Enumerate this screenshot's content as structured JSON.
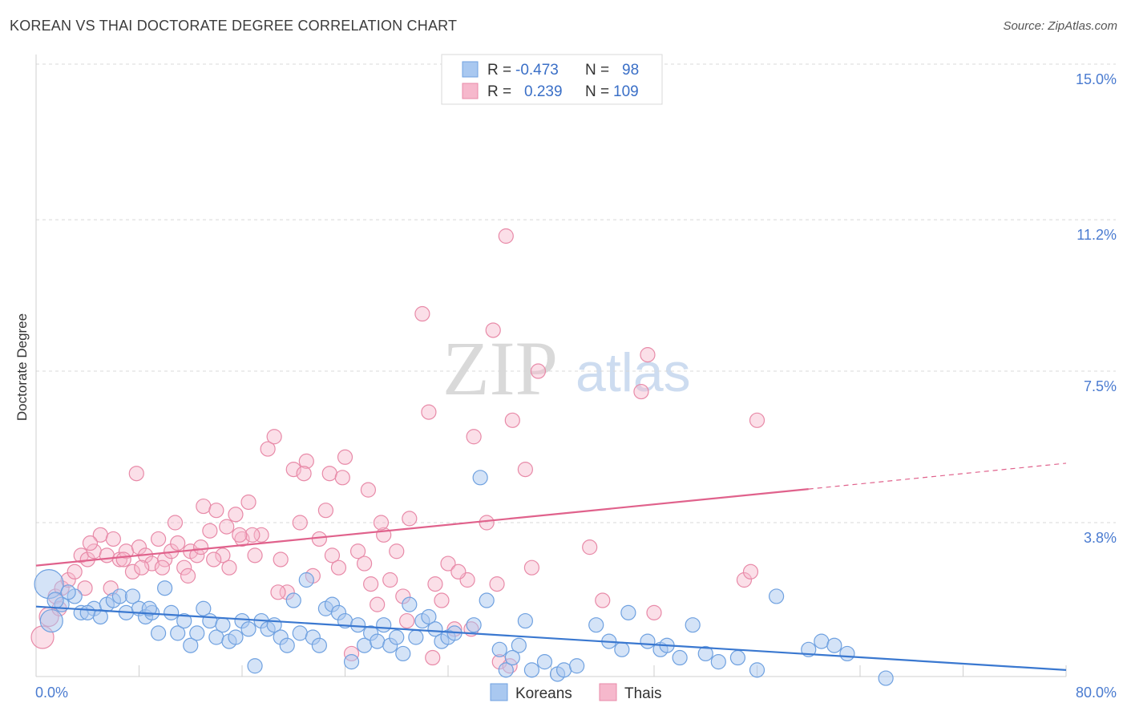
{
  "header": {
    "title": "KOREAN VS THAI DOCTORATE DEGREE CORRELATION CHART",
    "source": "Source: ZipAtlas.com"
  },
  "watermark": {
    "zip": "ZIP",
    "atlas": "atlas"
  },
  "colors": {
    "korean_fill": "#a9c8f0",
    "korean_stroke": "#6fa1e0",
    "korean_line": "#3a78d0",
    "thai_fill": "#f6b8cc",
    "thai_stroke": "#e88aa8",
    "thai_line": "#e0628c",
    "tick_text": "#4a7bd0",
    "grid": "#d8d8d8"
  },
  "legend": {
    "rows": [
      {
        "r_label": "R =",
        "r_value": "-0.473",
        "n_label": "N =",
        "n_value": "98"
      },
      {
        "r_label": "R =",
        "r_value": "0.239",
        "n_label": "N =",
        "n_value": "109"
      }
    ]
  },
  "bottom_legend": {
    "koreans": "Koreans",
    "thais": "Thais"
  },
  "chart_data": {
    "type": "scatter",
    "title": "KOREAN VS THAI DOCTORATE DEGREE CORRELATION CHART",
    "xlabel": "",
    "ylabel": "Doctorate Degree",
    "xlim": [
      0,
      80
    ],
    "ylim": [
      0,
      15.5
    ],
    "x_tick_labels": [
      "0.0%",
      "80.0%"
    ],
    "y_ticks": [
      3.8,
      7.5,
      11.2,
      15.0
    ],
    "y_tick_labels": [
      "3.8%",
      "7.5%",
      "11.2%",
      "15.0%"
    ],
    "series": [
      {
        "name": "Koreans",
        "r": -0.473,
        "n": 98,
        "trend": {
          "x0": 0,
          "y0": 1.75,
          "x1": 80,
          "y1": 0.2
        },
        "points": [
          [
            1.0,
            2.3,
            18
          ],
          [
            1.2,
            1.4,
            14
          ],
          [
            2.0,
            1.8,
            9
          ],
          [
            3.0,
            2.0,
            9
          ],
          [
            3.5,
            1.6,
            9
          ],
          [
            4.5,
            1.7,
            9
          ],
          [
            5.0,
            1.5,
            9
          ],
          [
            5.5,
            1.8,
            9
          ],
          [
            6.0,
            1.9,
            9
          ],
          [
            6.5,
            2.0,
            9
          ],
          [
            7.0,
            1.6,
            9
          ],
          [
            7.5,
            2.0,
            9
          ],
          [
            8.0,
            1.7,
            9
          ],
          [
            8.5,
            1.5,
            9
          ],
          [
            9.0,
            1.6,
            9
          ],
          [
            9.5,
            1.1,
            9
          ],
          [
            10.0,
            2.2,
            9
          ],
          [
            10.5,
            1.6,
            9
          ],
          [
            11.0,
            1.1,
            9
          ],
          [
            11.5,
            1.4,
            9
          ],
          [
            12.0,
            0.8,
            9
          ],
          [
            12.5,
            1.1,
            9
          ],
          [
            13.0,
            1.7,
            9
          ],
          [
            13.5,
            1.4,
            9
          ],
          [
            14.0,
            1.0,
            9
          ],
          [
            14.5,
            1.3,
            9
          ],
          [
            15.0,
            0.9,
            9
          ],
          [
            15.5,
            1.0,
            9
          ],
          [
            16.0,
            1.4,
            9
          ],
          [
            16.5,
            1.2,
            9
          ],
          [
            17.0,
            0.3,
            9
          ],
          [
            17.5,
            1.4,
            9
          ],
          [
            18.0,
            1.2,
            9
          ],
          [
            18.5,
            1.3,
            9
          ],
          [
            19.0,
            1.0,
            9
          ],
          [
            19.5,
            0.8,
            9
          ],
          [
            20.0,
            1.9,
            9
          ],
          [
            20.5,
            1.1,
            9
          ],
          [
            21.0,
            2.4,
            9
          ],
          [
            21.5,
            1.0,
            9
          ],
          [
            22.0,
            0.8,
            9
          ],
          [
            22.5,
            1.7,
            9
          ],
          [
            23.0,
            1.8,
            9
          ],
          [
            23.5,
            1.6,
            9
          ],
          [
            24.0,
            1.4,
            9
          ],
          [
            24.5,
            0.4,
            9
          ],
          [
            25.0,
            1.3,
            9
          ],
          [
            25.5,
            0.8,
            9
          ],
          [
            26.0,
            1.1,
            9
          ],
          [
            26.5,
            0.9,
            9
          ],
          [
            27.0,
            1.3,
            9
          ],
          [
            27.5,
            0.8,
            9
          ],
          [
            28.0,
            1.0,
            9
          ],
          [
            28.5,
            0.6,
            9
          ],
          [
            29.0,
            1.8,
            9
          ],
          [
            29.5,
            1.0,
            9
          ],
          [
            30.0,
            1.4,
            9
          ],
          [
            30.5,
            1.5,
            9
          ],
          [
            31.0,
            1.2,
            9
          ],
          [
            31.5,
            0.9,
            9
          ],
          [
            32.0,
            1.0,
            9
          ],
          [
            32.5,
            1.1,
            9
          ],
          [
            34.0,
            1.3,
            9
          ],
          [
            34.5,
            4.9,
            9
          ],
          [
            35.0,
            1.9,
            9
          ],
          [
            36.0,
            0.7,
            9
          ],
          [
            36.5,
            0.2,
            9
          ],
          [
            37.5,
            0.8,
            9
          ],
          [
            38.0,
            1.4,
            9
          ],
          [
            38.5,
            0.2,
            9
          ],
          [
            39.5,
            0.4,
            9
          ],
          [
            40.5,
            0.1,
            9
          ],
          [
            41.0,
            0.2,
            9
          ],
          [
            42.0,
            0.3,
            9
          ],
          [
            43.5,
            1.3,
            9
          ],
          [
            44.5,
            0.9,
            9
          ],
          [
            45.5,
            0.7,
            9
          ],
          [
            46.0,
            1.6,
            9
          ],
          [
            47.5,
            0.9,
            9
          ],
          [
            48.5,
            0.7,
            9
          ],
          [
            49.0,
            0.8,
            9
          ],
          [
            50.0,
            0.5,
            9
          ],
          [
            51.0,
            1.3,
            9
          ],
          [
            52.0,
            0.6,
            9
          ],
          [
            53.0,
            0.4,
            9
          ],
          [
            54.5,
            0.5,
            9
          ],
          [
            56.0,
            0.2,
            9
          ],
          [
            57.5,
            2.0,
            9
          ],
          [
            60.0,
            0.7,
            9
          ],
          [
            61.0,
            0.9,
            9
          ],
          [
            62.0,
            0.8,
            9
          ],
          [
            63.0,
            0.6,
            9
          ],
          [
            66.0,
            0.0,
            9
          ],
          [
            1.5,
            1.9,
            10
          ],
          [
            2.5,
            2.1,
            9
          ],
          [
            4.0,
            1.6,
            9
          ],
          [
            8.8,
            1.7,
            9
          ],
          [
            37.0,
            0.5,
            9
          ]
        ]
      },
      {
        "name": "Thais",
        "r": 0.239,
        "n": 109,
        "trend": {
          "x0": 0,
          "y0": 2.75,
          "x1": 60,
          "y1": 4.62,
          "dash_x1": 80,
          "dash_y1": 5.25
        },
        "points": [
          [
            0.5,
            1.0,
            14
          ],
          [
            1.0,
            1.5,
            12
          ],
          [
            1.5,
            2.0,
            9
          ],
          [
            2.0,
            2.2,
            9
          ],
          [
            2.5,
            2.4,
            9
          ],
          [
            3.0,
            2.6,
            9
          ],
          [
            3.5,
            3.0,
            9
          ],
          [
            4.0,
            2.9,
            9
          ],
          [
            4.5,
            3.1,
            9
          ],
          [
            5.0,
            3.5,
            9
          ],
          [
            5.5,
            3.0,
            9
          ],
          [
            6.0,
            3.4,
            9
          ],
          [
            6.5,
            2.9,
            9
          ],
          [
            7.0,
            3.1,
            9
          ],
          [
            7.5,
            2.6,
            9
          ],
          [
            8.0,
            3.2,
            9
          ],
          [
            8.5,
            3.0,
            9
          ],
          [
            9.0,
            2.8,
            9
          ],
          [
            9.5,
            3.4,
            9
          ],
          [
            10.0,
            2.9,
            9
          ],
          [
            10.5,
            3.1,
            9
          ],
          [
            11.0,
            3.3,
            9
          ],
          [
            11.5,
            2.7,
            9
          ],
          [
            12.0,
            3.1,
            9
          ],
          [
            12.5,
            3.0,
            9
          ],
          [
            13.0,
            4.2,
            9
          ],
          [
            13.5,
            3.6,
            9
          ],
          [
            14.0,
            4.1,
            9
          ],
          [
            14.5,
            3.0,
            9
          ],
          [
            15.0,
            2.7,
            9
          ],
          [
            15.5,
            4.0,
            9
          ],
          [
            16.0,
            3.4,
            9
          ],
          [
            16.5,
            4.3,
            9
          ],
          [
            17.0,
            3.0,
            9
          ],
          [
            17.5,
            3.5,
            9
          ],
          [
            18.0,
            5.6,
            9
          ],
          [
            18.5,
            5.9,
            9
          ],
          [
            19.0,
            2.9,
            9
          ],
          [
            19.5,
            2.1,
            9
          ],
          [
            20.0,
            5.1,
            9
          ],
          [
            20.5,
            3.8,
            9
          ],
          [
            21.0,
            5.3,
            9
          ],
          [
            21.5,
            2.5,
            9
          ],
          [
            22.0,
            3.4,
            9
          ],
          [
            22.5,
            4.1,
            9
          ],
          [
            23.0,
            3.0,
            9
          ],
          [
            23.5,
            2.7,
            9
          ],
          [
            24.0,
            5.4,
            9
          ],
          [
            24.5,
            0.6,
            9
          ],
          [
            25.0,
            3.1,
            9
          ],
          [
            25.5,
            2.8,
            9
          ],
          [
            26.0,
            2.3,
            9
          ],
          [
            26.5,
            1.8,
            9
          ],
          [
            27.0,
            3.5,
            9
          ],
          [
            27.5,
            2.4,
            9
          ],
          [
            28.0,
            3.1,
            9
          ],
          [
            28.5,
            2.0,
            9
          ],
          [
            29.0,
            3.9,
            9
          ],
          [
            30.0,
            8.9,
            9
          ],
          [
            30.5,
            6.5,
            9
          ],
          [
            31.0,
            2.3,
            9
          ],
          [
            31.5,
            1.9,
            9
          ],
          [
            32.0,
            2.8,
            9
          ],
          [
            32.5,
            1.2,
            9
          ],
          [
            33.5,
            2.4,
            9
          ],
          [
            34.0,
            5.9,
            9
          ],
          [
            35.0,
            3.8,
            9
          ],
          [
            35.5,
            8.5,
            9
          ],
          [
            36.0,
            0.4,
            9
          ],
          [
            36.5,
            10.8,
            9
          ],
          [
            37.0,
            6.3,
            9
          ],
          [
            38.0,
            5.1,
            9
          ],
          [
            38.5,
            2.7,
            9
          ],
          [
            39.0,
            7.5,
            9
          ],
          [
            43.0,
            3.2,
            9
          ],
          [
            44.0,
            1.9,
            9
          ],
          [
            47.0,
            7.0,
            9
          ],
          [
            47.5,
            7.9,
            9
          ],
          [
            48.0,
            1.6,
            9
          ],
          [
            55.0,
            2.4,
            9
          ],
          [
            55.5,
            2.6,
            9
          ],
          [
            56.0,
            6.3,
            9
          ],
          [
            4.2,
            3.3,
            9
          ],
          [
            5.8,
            2.2,
            9
          ],
          [
            7.8,
            5.0,
            9
          ],
          [
            8.2,
            2.7,
            9
          ],
          [
            10.8,
            3.8,
            9
          ],
          [
            12.8,
            3.2,
            9
          ],
          [
            14.8,
            3.7,
            9
          ],
          [
            16.8,
            3.5,
            9
          ],
          [
            18.8,
            2.1,
            9
          ],
          [
            20.8,
            5.0,
            9
          ],
          [
            22.8,
            5.0,
            9
          ],
          [
            23.8,
            4.9,
            9
          ],
          [
            25.8,
            4.6,
            9
          ],
          [
            26.8,
            3.8,
            9
          ],
          [
            28.8,
            1.4,
            9
          ],
          [
            30.8,
            0.5,
            9
          ],
          [
            32.8,
            2.6,
            9
          ],
          [
            33.8,
            1.2,
            9
          ],
          [
            35.8,
            2.3,
            9
          ],
          [
            36.8,
            0.3,
            9
          ],
          [
            1.8,
            1.7,
            9
          ],
          [
            3.8,
            2.2,
            9
          ],
          [
            6.8,
            2.9,
            9
          ],
          [
            9.8,
            2.7,
            9
          ],
          [
            11.8,
            2.5,
            9
          ],
          [
            13.8,
            2.9,
            9
          ],
          [
            15.8,
            3.5,
            9
          ]
        ]
      }
    ]
  }
}
